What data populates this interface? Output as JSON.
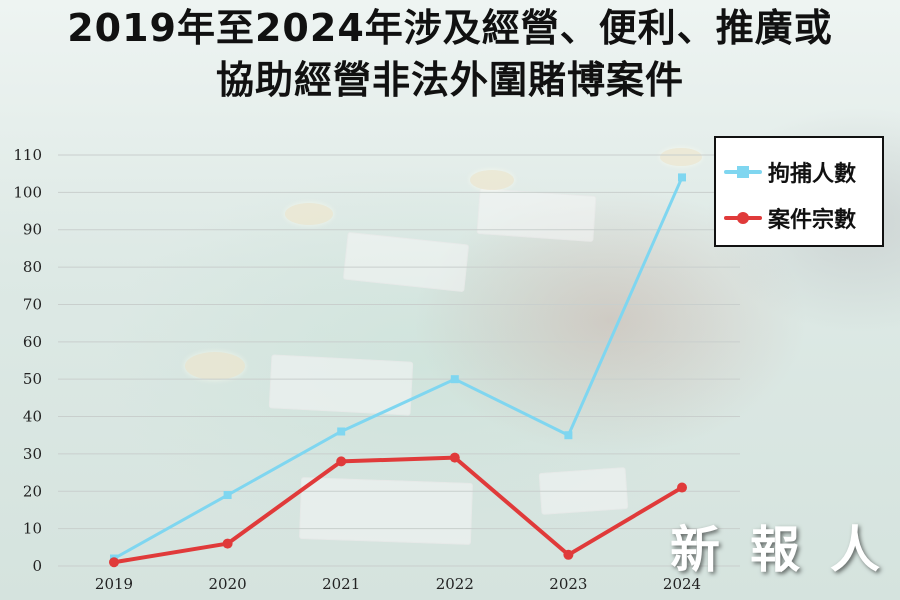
{
  "title_lines": [
    "2019年至2024年涉及經營、便利、推廣或",
    "協助經營非法外圍賭博案件"
  ],
  "chart_data": {
    "type": "line",
    "title": "2019年至2024年涉及經營、便利、推廣或協助經營非法外圍賭博案件",
    "xlabel": "",
    "ylabel": "",
    "categories": [
      "2019",
      "2020",
      "2021",
      "2022",
      "2023",
      "2024"
    ],
    "ylim": [
      0,
      110
    ],
    "yticks": [
      0,
      10,
      20,
      30,
      40,
      50,
      60,
      70,
      80,
      90,
      100,
      110
    ],
    "grid": true,
    "legend_position": "top-right",
    "series": [
      {
        "name": "拘捕人數",
        "color": "#7fd6f0",
        "marker": "square",
        "values": [
          2,
          19,
          36,
          50,
          35,
          104
        ]
      },
      {
        "name": "案件宗數",
        "color": "#e03a3a",
        "marker": "circle",
        "values": [
          1,
          6,
          28,
          29,
          3,
          21
        ]
      }
    ]
  },
  "watermark": {
    "chars": [
      "新",
      "報",
      "人"
    ]
  }
}
